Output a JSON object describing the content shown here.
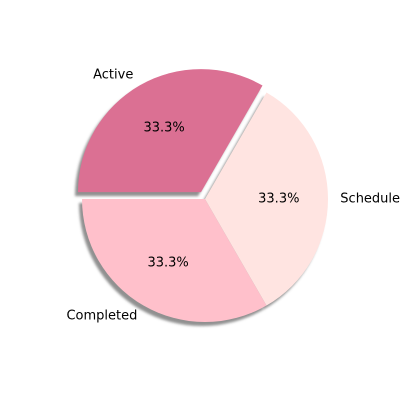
{
  "chart_data": {
    "type": "pie",
    "title": "",
    "slices": [
      {
        "label": "Active",
        "value": 33.3,
        "pct_label": "33.3%",
        "color": "#db7093"
      },
      {
        "label": "Completed",
        "value": 33.3,
        "pct_label": "33.3%",
        "color": "#ffc0cb"
      },
      {
        "label": "Scheduled",
        "value": 33.3,
        "pct_label": "33.3%",
        "color": "#ffe4e1"
      }
    ],
    "shadow": true,
    "exploded": "Active",
    "legend": "none"
  }
}
